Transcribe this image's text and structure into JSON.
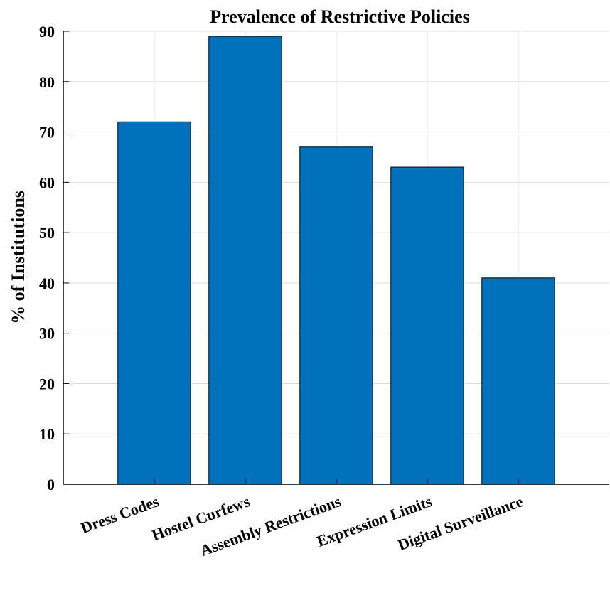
{
  "chart_data": {
    "type": "bar",
    "title": "Prevalence of Restrictive Policies",
    "ylabel": "% of Institutions",
    "xlabel": "",
    "categories": [
      "Dress Codes",
      "Hostel Curfews",
      "Assembly Restrictions",
      "Expression Limits",
      "Digital Surveillance"
    ],
    "values": [
      72,
      89,
      67,
      63,
      41
    ],
    "ylim": [
      0,
      90
    ],
    "yticks": [
      0,
      10,
      20,
      30,
      40,
      50,
      60,
      70,
      80,
      90
    ],
    "xlim": [
      0,
      6
    ],
    "grid": true,
    "bar_color": "#0072BD",
    "legend": "none"
  }
}
